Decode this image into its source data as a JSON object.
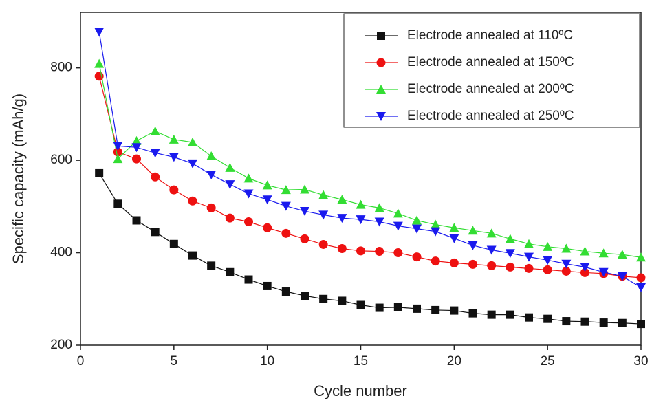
{
  "chart_data": {
    "type": "line",
    "x_label": "Cycle number",
    "y_label": "Specific capacity (mAh/g)",
    "xlim": [
      0,
      30
    ],
    "xticks": [
      0,
      5,
      10,
      15,
      20,
      25,
      30
    ],
    "ylim": [
      200,
      920
    ],
    "yticks": [
      200,
      400,
      600,
      800
    ],
    "legend": "upper right",
    "x": [
      1,
      2,
      3,
      4,
      5,
      6,
      7,
      8,
      9,
      10,
      11,
      12,
      13,
      14,
      15,
      16,
      17,
      18,
      19,
      20,
      21,
      22,
      23,
      24,
      25,
      26,
      27,
      28,
      29,
      30
    ],
    "series": [
      {
        "name": "Electrode annealed at 110ºC",
        "color": "#111111",
        "marker": "square",
        "values": [
          572,
          506,
          470,
          445,
          419,
          394,
          372,
          358,
          342,
          328,
          316,
          307,
          300,
          296,
          287,
          281,
          282,
          279,
          276,
          275,
          269,
          266,
          266,
          260,
          257,
          252,
          251,
          249,
          248,
          246
        ]
      },
      {
        "name": "Electrode annealed at 150ºC",
        "color": "#ee1111",
        "marker": "circle",
        "values": [
          782,
          618,
          603,
          564,
          536,
          512,
          497,
          475,
          467,
          454,
          442,
          430,
          418,
          409,
          404,
          403,
          400,
          391,
          382,
          378,
          375,
          372,
          369,
          366,
          363,
          360,
          357,
          355,
          349,
          346
        ]
      },
      {
        "name": "Electrode annealed at 200ºC",
        "color": "#33dd33",
        "marker": "triangle-up",
        "values": [
          809,
          603,
          642,
          663,
          645,
          639,
          609,
          584,
          561,
          546,
          536,
          537,
          525,
          515,
          504,
          497,
          485,
          470,
          461,
          454,
          448,
          442,
          430,
          419,
          413,
          409,
          403,
          399,
          396,
          390
        ]
      },
      {
        "name": "Electrode annealed at 250ºC",
        "color": "#1a1aee",
        "marker": "triangle-down",
        "values": [
          878,
          631,
          628,
          616,
          607,
          593,
          569,
          548,
          528,
          515,
          501,
          490,
          482,
          475,
          472,
          467,
          458,
          452,
          446,
          431,
          416,
          406,
          399,
          391,
          384,
          376,
          369,
          358,
          349,
          325
        ]
      }
    ]
  }
}
